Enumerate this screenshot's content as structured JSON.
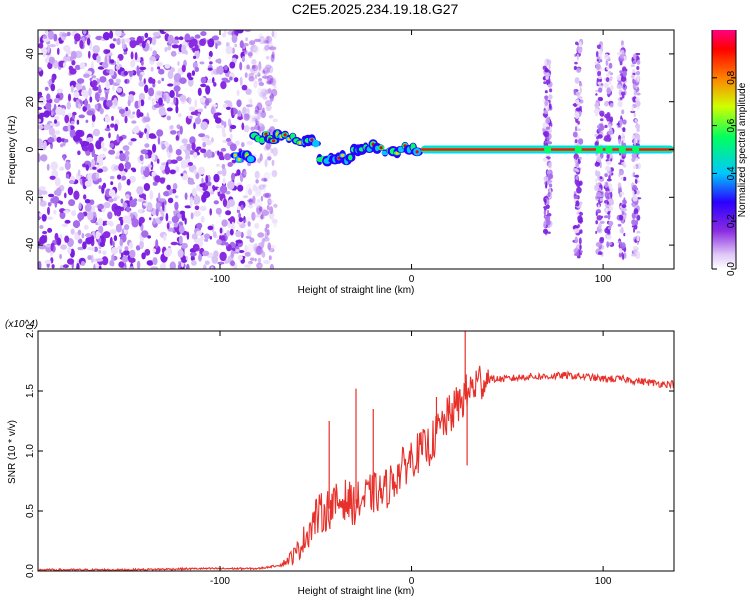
{
  "title": "C2E5.2025.234.19.18.G27",
  "chart_data": [
    {
      "type": "heatmap",
      "name": "spectrogram",
      "xlabel": "Height of straight line (km)",
      "ylabel": "Frequency (Hz)",
      "xlim": [
        -195,
        137
      ],
      "ylim": [
        -50,
        50
      ],
      "xticks": [
        -100,
        0,
        100
      ],
      "xtick_labels": [
        "-100",
        "0",
        "100"
      ],
      "yticks": [
        -40,
        -20,
        0,
        20,
        40
      ],
      "ytick_labels": [
        "-40",
        "-20",
        "0",
        "20",
        "40"
      ],
      "colorbar": {
        "label": "Normalized spectral amplitude",
        "range": [
          0,
          1
        ],
        "ticks": [
          0.0,
          0.2,
          0.4,
          0.6,
          0.8
        ],
        "tick_labels": [
          "0.0",
          "0.2",
          "0.4",
          "0.6",
          "0.8"
        ],
        "colors": [
          "#ffffff",
          "#e0c8f8",
          "#8a2be2",
          "#2a00ff",
          "#00c8ff",
          "#00ff60",
          "#d0ff00",
          "#ff8000",
          "#ff0000",
          "#ff0080"
        ]
      },
      "noise_region_x": [
        -195,
        -75
      ],
      "tone_segments": [
        {
          "x": [
            -92,
            -82
          ],
          "freq": -3
        },
        {
          "x": [
            -82,
            -62
          ],
          "freq": 5
        },
        {
          "x": [
            -62,
            -48
          ],
          "freq": 4
        },
        {
          "x": [
            -48,
            -30
          ],
          "freq": -4
        },
        {
          "x": [
            -30,
            -18
          ],
          "freq": 1
        },
        {
          "x": [
            -18,
            5
          ],
          "freq": 0
        },
        {
          "x": [
            5,
            137
          ],
          "freq": 0
        }
      ],
      "spike_clusters": [
        {
          "x": 71,
          "freq_range": [
            -35,
            38
          ]
        },
        {
          "x": 87,
          "freq_range": [
            -45,
            45
          ]
        },
        {
          "x": 98,
          "freq_range": [
            -45,
            45
          ]
        },
        {
          "x": 103,
          "freq_range": [
            -40,
            40
          ]
        },
        {
          "x": 110,
          "freq_range": [
            -45,
            45
          ]
        },
        {
          "x": 117,
          "freq_range": [
            -45,
            40
          ]
        }
      ]
    },
    {
      "type": "line",
      "name": "snr",
      "xlabel": "Height of straight line (km)",
      "ylabel": "SNR (10 * v/v)",
      "y_multiplier": "(x10^4)",
      "xlim": [
        -195,
        137
      ],
      "ylim": [
        0,
        2.0
      ],
      "xticks": [
        -100,
        0,
        100
      ],
      "xtick_labels": [
        "-100",
        "0",
        "100"
      ],
      "yticks": [
        0.0,
        0.5,
        1.0,
        1.5,
        2.0
      ],
      "ytick_labels": [
        "0.0",
        "0.5",
        "1.0",
        "1.5",
        "2.0"
      ],
      "color": "#e8302a",
      "series": [
        {
          "name": "SNR",
          "x": [
            -195,
            -150,
            -110,
            -80,
            -68,
            -60,
            -55,
            -50,
            -45,
            -40,
            -35,
            -30,
            -25,
            -20,
            -15,
            -10,
            -5,
            0,
            5,
            10,
            15,
            20,
            25,
            30,
            35,
            40,
            50,
            60,
            70,
            80,
            90,
            100,
            110,
            120,
            130,
            137
          ],
          "y": [
            0.01,
            0.01,
            0.02,
            0.02,
            0.05,
            0.15,
            0.3,
            0.45,
            0.5,
            0.55,
            0.6,
            0.55,
            0.6,
            0.65,
            0.65,
            0.75,
            0.85,
            0.95,
            1.0,
            1.05,
            1.2,
            1.3,
            1.4,
            1.5,
            1.58,
            1.6,
            1.6,
            1.62,
            1.62,
            1.63,
            1.62,
            1.6,
            1.6,
            1.58,
            1.56,
            1.56
          ]
        }
      ],
      "spikes": [
        {
          "x": -43,
          "y": 1.25
        },
        {
          "x": -29,
          "y": 1.52
        },
        {
          "x": -20,
          "y": 1.35
        },
        {
          "x": 13,
          "y": 1.45
        },
        {
          "x": 28,
          "y": 2.0
        },
        {
          "x": 29,
          "y": 0.88
        }
      ]
    }
  ]
}
